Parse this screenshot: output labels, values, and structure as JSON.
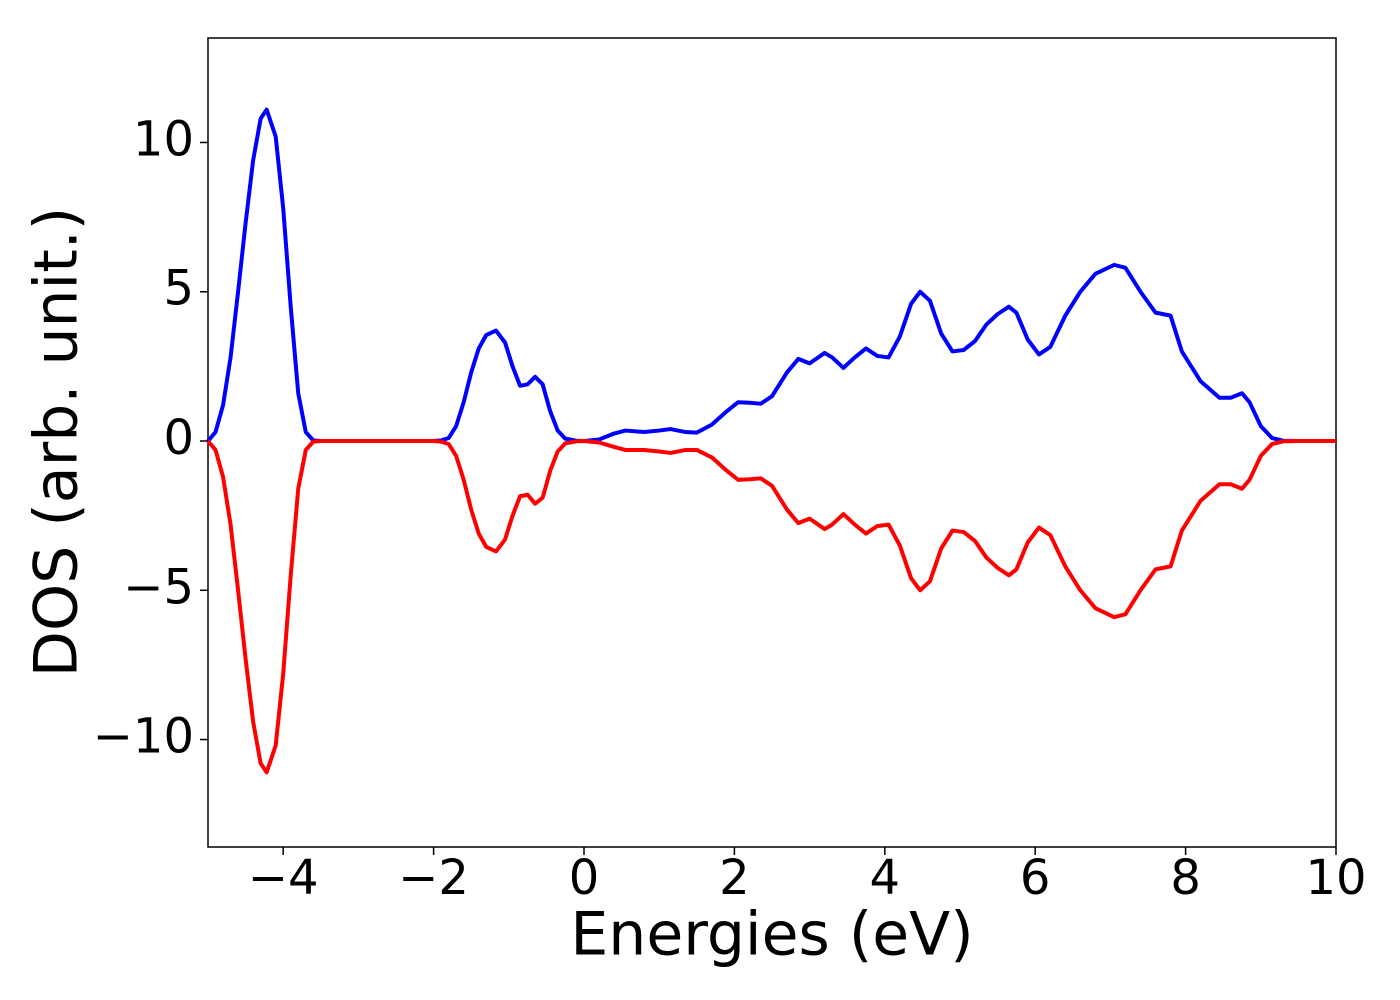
{
  "chart_data": {
    "type": "line",
    "xlabel": "Energies (eV)",
    "ylabel": "DOS (arb. unit.)",
    "x": [
      -5,
      -4.9,
      -4.8,
      -4.7,
      -4.6,
      -4.5,
      -4.4,
      -4.3,
      -4.22,
      -4.1,
      -4.0,
      -3.9,
      -3.8,
      -3.7,
      -3.6,
      -3.5,
      -2.0,
      -1.9,
      -1.8,
      -1.7,
      -1.6,
      -1.5,
      -1.4,
      -1.3,
      -1.17,
      -1.05,
      -0.95,
      -0.85,
      -0.75,
      -0.65,
      -0.55,
      -0.45,
      -0.35,
      -0.25,
      -0.1,
      0,
      0.2,
      0.4,
      0.55,
      0.8,
      1.0,
      1.15,
      1.35,
      1.5,
      1.7,
      1.9,
      2.05,
      2.2,
      2.35,
      2.5,
      2.7,
      2.85,
      3.0,
      3.2,
      3.3,
      3.45,
      3.6,
      3.75,
      3.9,
      4.05,
      4.2,
      4.35,
      4.47,
      4.6,
      4.75,
      4.9,
      5.05,
      5.2,
      5.35,
      5.5,
      5.65,
      5.75,
      5.9,
      6.05,
      6.2,
      6.4,
      6.6,
      6.8,
      7.05,
      7.2,
      7.4,
      7.6,
      7.8,
      7.95,
      8.2,
      8.45,
      8.6,
      8.75,
      8.85,
      9.0,
      9.15,
      9.3,
      9.5,
      10
    ],
    "series": [
      {
        "color": "#0000ff",
        "values": [
          0,
          0.3,
          1.2,
          2.8,
          5.0,
          7.3,
          9.4,
          10.8,
          11.1,
          10.2,
          7.8,
          4.5,
          1.6,
          0.3,
          0.02,
          0,
          0,
          0.02,
          0.1,
          0.5,
          1.3,
          2.3,
          3.1,
          3.55,
          3.7,
          3.3,
          2.5,
          1.85,
          1.9,
          2.15,
          1.9,
          1.0,
          0.35,
          0.08,
          0.01,
          0,
          0.05,
          0.25,
          0.35,
          0.3,
          0.35,
          0.4,
          0.3,
          0.28,
          0.55,
          1.0,
          1.3,
          1.28,
          1.25,
          1.5,
          2.3,
          2.75,
          2.6,
          2.95,
          2.8,
          2.45,
          2.8,
          3.1,
          2.85,
          2.8,
          3.5,
          4.6,
          5.0,
          4.7,
          3.6,
          3.0,
          3.05,
          3.35,
          3.9,
          4.25,
          4.5,
          4.3,
          3.4,
          2.9,
          3.15,
          4.2,
          5.0,
          5.6,
          5.9,
          5.8,
          5.0,
          4.3,
          4.2,
          3.0,
          2.0,
          1.45,
          1.45,
          1.6,
          1.3,
          0.5,
          0.1,
          0.01,
          0,
          0
        ]
      },
      {
        "color": "#ff0000",
        "values": [
          0,
          -0.3,
          -1.2,
          -2.8,
          -5.0,
          -7.3,
          -9.4,
          -10.8,
          -11.1,
          -10.2,
          -7.8,
          -4.5,
          -1.6,
          -0.3,
          -0.02,
          0,
          0,
          -0.02,
          -0.1,
          -0.5,
          -1.3,
          -2.3,
          -3.1,
          -3.55,
          -3.7,
          -3.3,
          -2.5,
          -1.85,
          -1.8,
          -2.1,
          -1.9,
          -1.0,
          -0.35,
          -0.08,
          -0.01,
          0,
          -0.05,
          -0.2,
          -0.3,
          -0.3,
          -0.35,
          -0.4,
          -0.3,
          -0.3,
          -0.55,
          -1.0,
          -1.3,
          -1.28,
          -1.25,
          -1.5,
          -2.3,
          -2.75,
          -2.6,
          -2.95,
          -2.8,
          -2.45,
          -2.8,
          -3.1,
          -2.85,
          -2.8,
          -3.5,
          -4.6,
          -5.0,
          -4.7,
          -3.6,
          -3.0,
          -3.05,
          -3.35,
          -3.9,
          -4.25,
          -4.5,
          -4.3,
          -3.4,
          -2.9,
          -3.15,
          -4.2,
          -5.0,
          -5.6,
          -5.9,
          -5.8,
          -5.0,
          -4.3,
          -4.2,
          -3.0,
          -2.0,
          -1.45,
          -1.45,
          -1.6,
          -1.3,
          -0.5,
          -0.1,
          -0.01,
          0,
          0
        ]
      }
    ],
    "xlim": [
      -5,
      10
    ],
    "xticks": [
      {
        "value": -4,
        "label": "−4"
      },
      {
        "value": -2,
        "label": "−2"
      },
      0,
      2,
      4,
      6,
      8,
      10
    ],
    "ylim": [
      -13.6,
      13.5
    ],
    "yticks": [
      {
        "value": -10,
        "label": "−10"
      },
      {
        "value": -5,
        "label": "−5"
      },
      0,
      5,
      10
    ],
    "grid": false
  }
}
